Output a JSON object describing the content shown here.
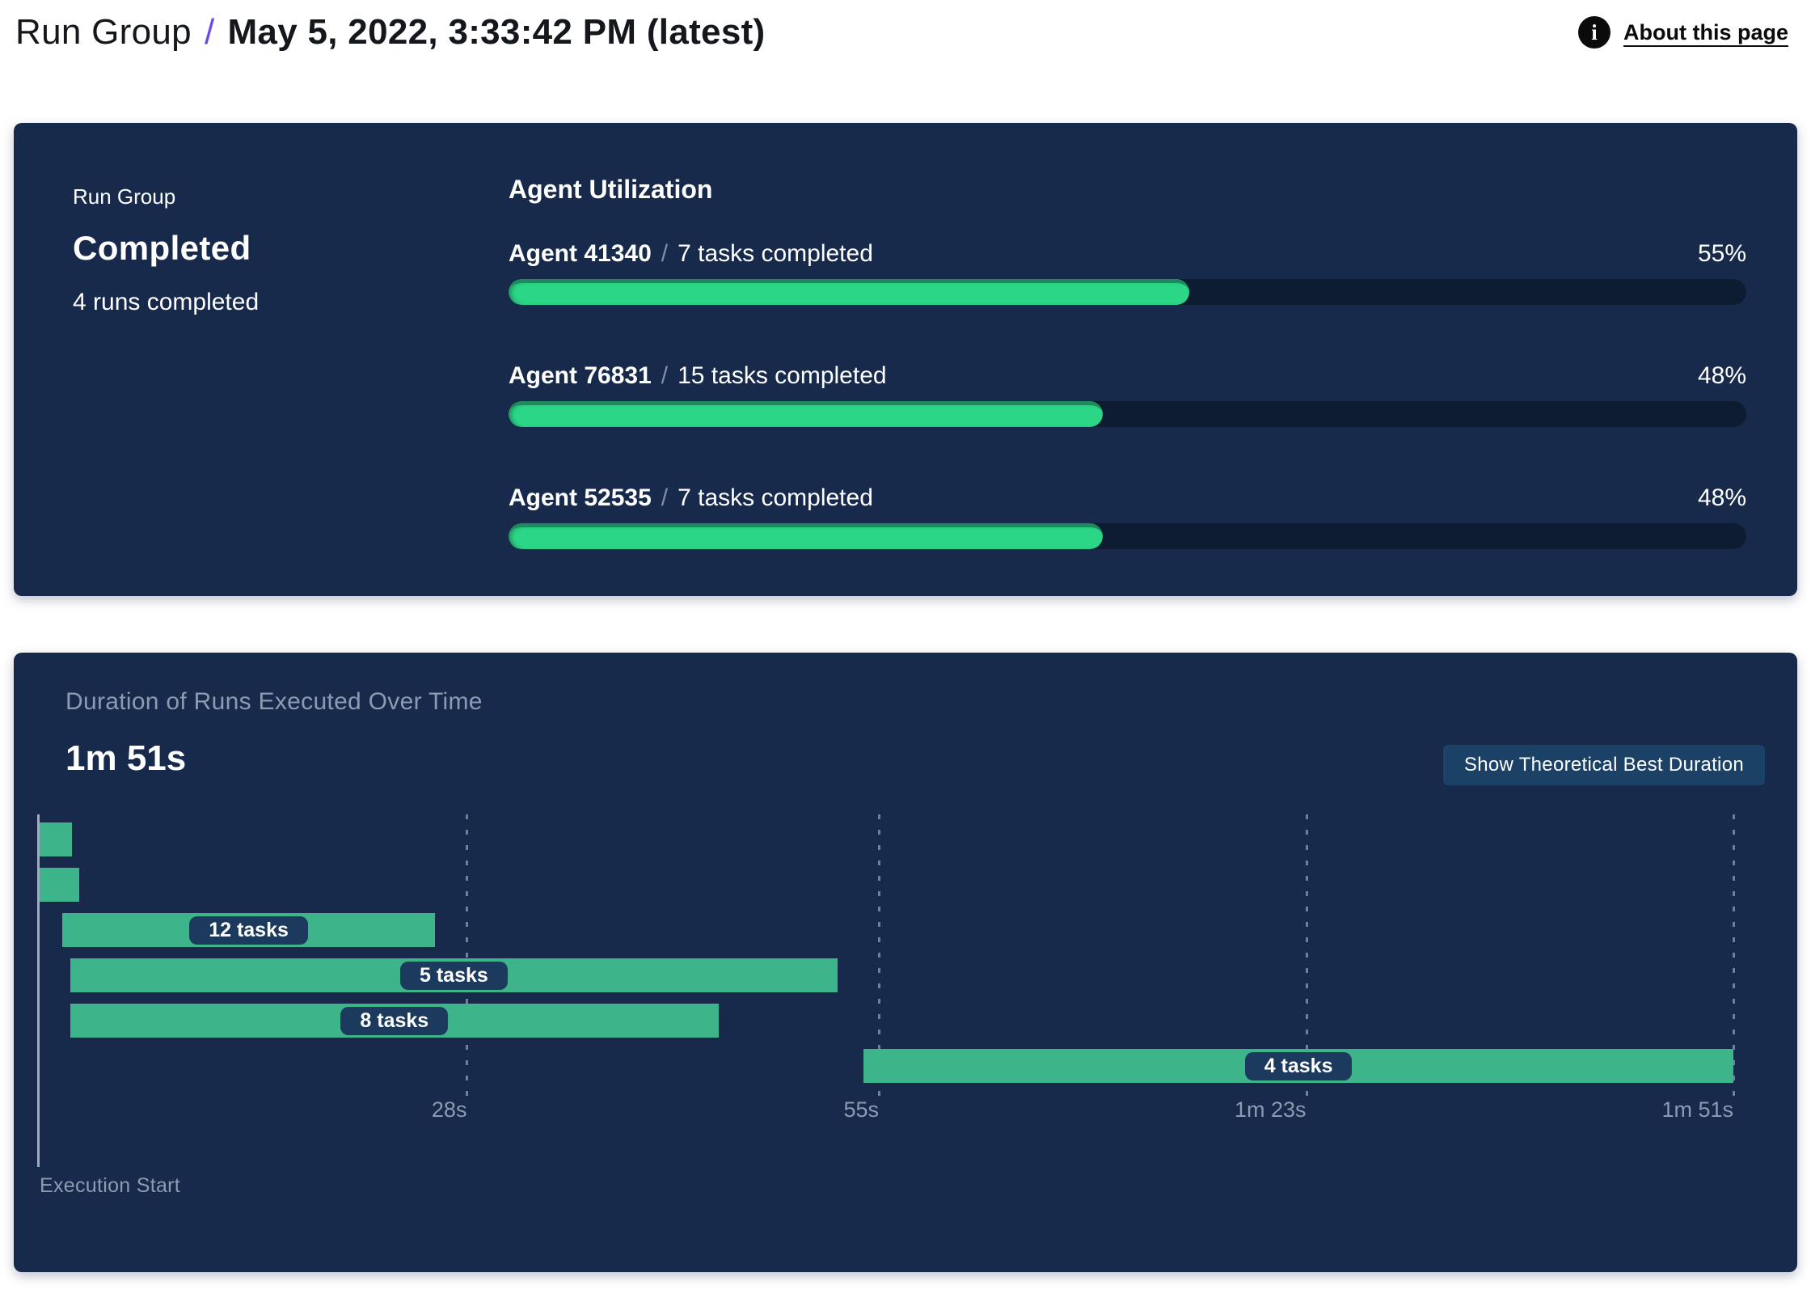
{
  "header": {
    "breadcrumb": "Run Group",
    "separator": "/",
    "title": "May 5, 2022, 3:33:42 PM (latest)",
    "about_label": "About this page",
    "info_icon": "i"
  },
  "summary": {
    "label": "Run Group",
    "status": "Completed",
    "runs": "4 runs completed"
  },
  "utilization": {
    "title": "Agent Utilization",
    "separator": "/",
    "agents": [
      {
        "name": "Agent 41340",
        "tasks": "7 tasks completed",
        "percent": 55
      },
      {
        "name": "Agent 76831",
        "tasks": "15 tasks completed",
        "percent": 48
      },
      {
        "name": "Agent 52535",
        "tasks": "7 tasks completed",
        "percent": 48
      }
    ]
  },
  "duration": {
    "title": "Duration of Runs Executed Over Time",
    "max_label": "1m 51s",
    "button_label": "Show Theoretical Best Duration",
    "axis_label": "Execution Start",
    "axis_max_s": 111,
    "ticks": [
      {
        "label": "28s",
        "s": 28
      },
      {
        "label": "55s",
        "s": 55
      },
      {
        "label": "1m 23s",
        "s": 83
      },
      {
        "label": "1m 51s",
        "s": 111
      }
    ],
    "runs": [
      {
        "start_s": 0,
        "end_s": 2.1,
        "label": ""
      },
      {
        "start_s": 0,
        "end_s": 2.6,
        "label": ""
      },
      {
        "start_s": 1.5,
        "end_s": 25.9,
        "label": "12 tasks"
      },
      {
        "start_s": 2,
        "end_s": 52.3,
        "label": "5 tasks"
      },
      {
        "start_s": 2,
        "end_s": 44.5,
        "label": "8 tasks"
      },
      {
        "start_s": 54,
        "end_s": 111,
        "label": "4 tasks"
      }
    ]
  },
  "chart_data": [
    {
      "type": "bar",
      "title": "Agent Utilization",
      "categories": [
        "Agent 41340",
        "Agent 76831",
        "Agent 52535"
      ],
      "values": [
        55,
        48,
        48
      ],
      "value_unit": "%",
      "annotations": [
        "7 tasks completed",
        "15 tasks completed",
        "7 tasks completed"
      ],
      "xlim": [
        0,
        100
      ],
      "legend_position": "none",
      "grid": false
    },
    {
      "type": "gantt",
      "title": "Duration of Runs Executed Over Time",
      "total_duration_label": "1m 51s",
      "xlabel": "Execution Start",
      "xlim_seconds": [
        0,
        111
      ],
      "xtick_labels": [
        "28s",
        "55s",
        "1m 23s",
        "1m 51s"
      ],
      "xtick_seconds": [
        28,
        55,
        83,
        111
      ],
      "grid": true,
      "runs": [
        {
          "start_s": 0,
          "end_s": 2.1,
          "tasks": null
        },
        {
          "start_s": 0,
          "end_s": 2.6,
          "tasks": null
        },
        {
          "start_s": 1.5,
          "end_s": 25.9,
          "tasks": 12
        },
        {
          "start_s": 2,
          "end_s": 52.3,
          "tasks": 5
        },
        {
          "start_s": 2,
          "end_s": 44.5,
          "tasks": 8
        },
        {
          "start_s": 54,
          "end_s": 111,
          "tasks": 4
        }
      ]
    }
  ],
  "colors": {
    "panel": "#172A4C",
    "track": "#0D1C31",
    "green": "#2CD687",
    "green-dark": "#1F8A5E",
    "teal": "#3DB48A",
    "pill": "#1C3A5E",
    "muted": "#8C9BB0",
    "axis": "#9FACBE",
    "button": "#1C4166",
    "purple": "#6D49E8",
    "link": "#0B0B0B"
  }
}
